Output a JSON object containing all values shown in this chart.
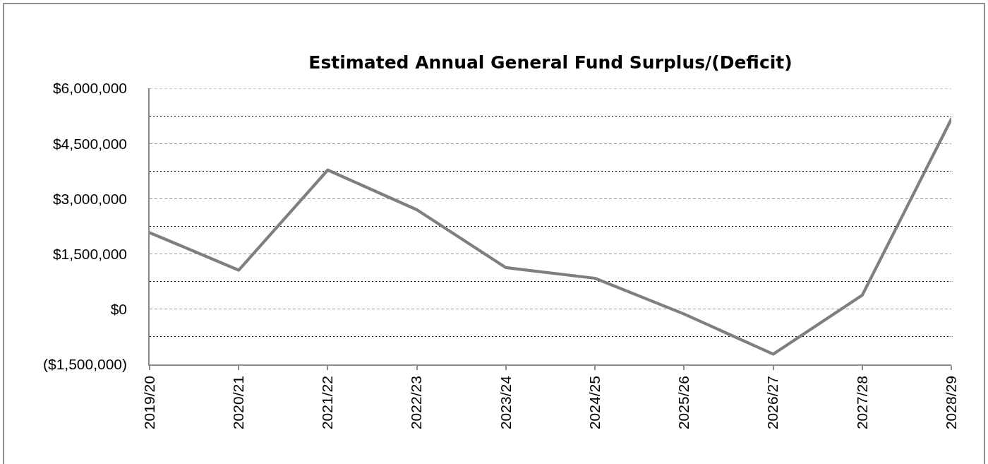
{
  "chart_data": {
    "type": "line",
    "title": "Estimated Annual General Fund Surplus/(Deficit)",
    "categories": [
      "2019/20",
      "2020/21",
      "2021/22",
      "2022/23",
      "2023/24",
      "2024/25",
      "2025/26",
      "2026/27",
      "2027/28",
      "2028/29"
    ],
    "series": [
      {
        "color": "#7f7f7f",
        "values": [
          2080000,
          1060000,
          3780000,
          2700000,
          1130000,
          840000,
          -130000,
          -1220000,
          380000,
          5160000
        ]
      }
    ],
    "ylim": [
      -1500000,
      6000000
    ],
    "yticks": [
      {
        "value": -1500000,
        "label": "($1,500,000)"
      },
      {
        "value": -750000,
        "label": null
      },
      {
        "value": 0,
        "label": "$0"
      },
      {
        "value": 750000,
        "label": null
      },
      {
        "value": 1500000,
        "label": "$1,500,000"
      },
      {
        "value": 2250000,
        "label": null
      },
      {
        "value": 3000000,
        "label": "$3,000,000"
      },
      {
        "value": 3750000,
        "label": null
      },
      {
        "value": 4500000,
        "label": "$4,500,000"
      },
      {
        "value": 5250000,
        "label": null
      },
      {
        "value": 6000000,
        "label": "$6,000,000"
      }
    ],
    "grid": "y",
    "marker": "none",
    "line_style": "solid"
  }
}
